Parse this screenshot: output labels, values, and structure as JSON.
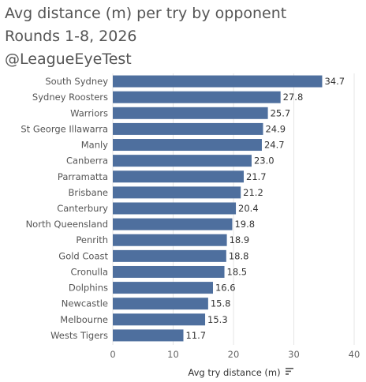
{
  "header": {
    "title": "Avg distance (m) per try by opponent",
    "subtitle": "Rounds 1-8, 2026",
    "handle": "@LeagueEyeTest"
  },
  "chart_data": {
    "type": "bar",
    "orientation": "horizontal",
    "categories": [
      "South Sydney",
      "Sydney Roosters",
      "Warriors",
      "St George Illawarra",
      "Manly",
      "Canberra",
      "Parramatta",
      "Brisbane",
      "Canterbury",
      "North Queensland",
      "Penrith",
      "Gold Coast",
      "Cronulla",
      "Dolphins",
      "Newcastle",
      "Melbourne",
      "Wests Tigers"
    ],
    "values": [
      34.7,
      27.8,
      25.7,
      24.9,
      24.7,
      23.0,
      21.7,
      21.2,
      20.4,
      19.8,
      18.9,
      18.8,
      18.5,
      16.6,
      15.8,
      15.3,
      11.7
    ],
    "value_labels": [
      "34.7",
      "27.8",
      "25.7",
      "24.9",
      "24.7",
      "23.0",
      "21.7",
      "21.2",
      "20.4",
      "19.8",
      "18.9",
      "18.8",
      "18.5",
      "16.6",
      "15.8",
      "15.3",
      "11.7"
    ],
    "xlabel": "Avg try distance (m)",
    "xlim": [
      0,
      40
    ],
    "xticks": [
      0,
      10,
      20,
      30,
      40
    ],
    "grid": true,
    "bar_color": "#4e6f9e",
    "sorted": "descending"
  },
  "icons": {
    "sort_indicator": "sort-descending-icon"
  }
}
